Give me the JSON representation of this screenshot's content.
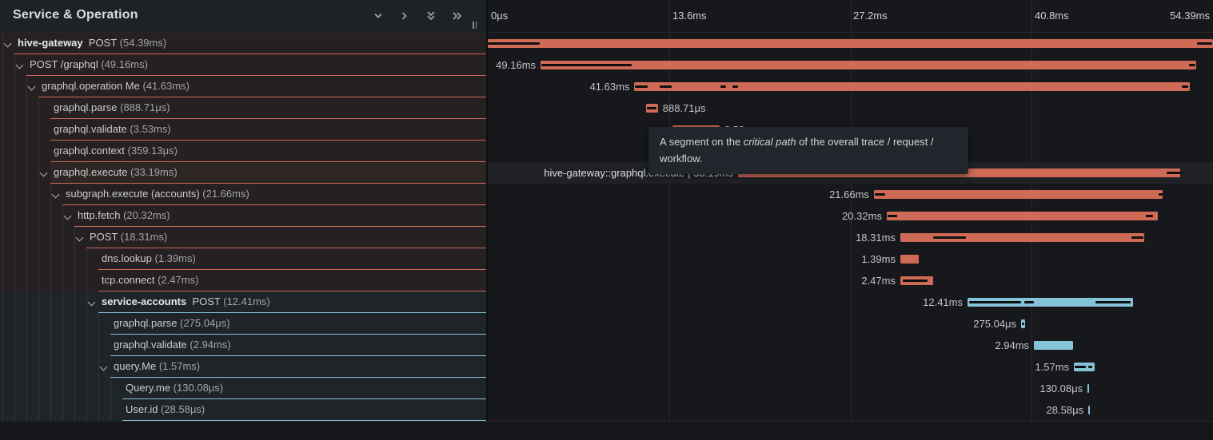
{
  "header": {
    "title": "Service & Operation",
    "icons": [
      "collapse-one-icon",
      "expand-one-icon",
      "collapse-all-icon",
      "expand-all-icon"
    ]
  },
  "timeline": {
    "max_ms": 54.39,
    "ticks": [
      "0μs",
      "13.6ms",
      "27.2ms",
      "40.8ms",
      "54.39ms"
    ]
  },
  "tooltip": {
    "pre": "A segment on the ",
    "italic": "critical path",
    "post": " of the overall trace / request / workflow."
  },
  "colors": {
    "orange": "#cf6a57",
    "blue": "#84c3d8",
    "critical_path": "#0e0f10",
    "row_bg_orange": "#252021",
    "row_bg_blue": "#1f2429",
    "row_hover_bg": "#2d2624",
    "timeline_hover_bg": "#1f2125"
  },
  "rows": [
    {
      "depth": 0,
      "expand": true,
      "bold": "hive-gateway",
      "name": "POST",
      "dur": "(54.39ms)",
      "svc": "orange",
      "start": 0,
      "ms": 54.39,
      "label": "",
      "side": "none",
      "crit": [
        [
          0,
          3.9
        ],
        [
          53.2,
          54.35
        ]
      ]
    },
    {
      "depth": 1,
      "expand": true,
      "bold": "",
      "name": "POST /graphql",
      "dur": "(49.16ms)",
      "svc": "orange",
      "start": 3.96,
      "ms": 49.16,
      "label": "49.16ms",
      "side": "left",
      "crit": [
        [
          4.0,
          10.8
        ],
        [
          52.6,
          53.05
        ]
      ]
    },
    {
      "depth": 2,
      "expand": true,
      "bold": "",
      "name": "graphql.operation Me",
      "dur": "(41.63ms)",
      "svc": "orange",
      "start": 11.0,
      "ms": 41.63,
      "label": "41.63ms",
      "side": "left",
      "crit": [
        [
          11.05,
          12.0
        ],
        [
          12.9,
          13.8
        ],
        [
          17.45,
          17.85
        ],
        [
          18.35,
          18.75
        ],
        [
          52.05,
          52.55
        ]
      ]
    },
    {
      "depth": 3,
      "expand": false,
      "bold": "",
      "name": "graphql.parse",
      "dur": "(888.71μs)",
      "svc": "orange",
      "start": 11.87,
      "ms": 0.889,
      "label": "888.71μs",
      "side": "right",
      "crit": [
        [
          11.95,
          12.65
        ]
      ]
    },
    {
      "depth": 3,
      "expand": false,
      "bold": "",
      "name": "graphql.validate",
      "dur": "(3.53ms)",
      "svc": "orange",
      "start": 13.85,
      "ms": 3.53,
      "label": "3.53ms",
      "side": "right",
      "crit": []
    },
    {
      "depth": 3,
      "expand": false,
      "bold": "",
      "name": "graphql.context",
      "dur": "(359.13μs)",
      "svc": "orange",
      "start": 17.5,
      "ms": 0.359,
      "label": "359.13μs",
      "side": "right",
      "crit": []
    },
    {
      "depth": 3,
      "expand": true,
      "hovered": true,
      "bold": "",
      "name": "graphql.execute",
      "dur": "(33.19ms)",
      "svc": "orange",
      "start": 18.77,
      "ms": 33.19,
      "label": "hive-gateway::graphql.execute | 33.19ms",
      "side": "left",
      "crit": [
        [
          18.85,
          28.9
        ],
        [
          50.9,
          52.0
        ]
      ]
    },
    {
      "depth": 4,
      "expand": true,
      "bold": "",
      "name": "subgraph.execute (accounts)",
      "dur": "(21.66ms)",
      "svc": "orange",
      "start": 28.96,
      "ms": 21.66,
      "label": "21.66ms",
      "side": "left",
      "crit": [
        [
          29.05,
          29.8
        ],
        [
          50.3,
          50.6
        ]
      ]
    },
    {
      "depth": 5,
      "expand": true,
      "bold": "",
      "name": "http.fetch",
      "dur": "(20.32ms)",
      "svc": "orange",
      "start": 29.92,
      "ms": 20.32,
      "label": "20.32ms",
      "side": "left",
      "crit": [
        [
          30.0,
          30.7
        ],
        [
          49.35,
          49.9
        ]
      ]
    },
    {
      "depth": 6,
      "expand": true,
      "bold": "",
      "name": "POST",
      "dur": "(18.31ms)",
      "svc": "orange",
      "start": 30.94,
      "ms": 18.31,
      "label": "18.31ms",
      "side": "left",
      "crit": [
        [
          33.4,
          35.85
        ],
        [
          48.3,
          49.15
        ]
      ]
    },
    {
      "depth": 7,
      "expand": false,
      "bold": "",
      "name": "dns.lookup",
      "dur": "(1.39ms)",
      "svc": "orange",
      "start": 30.94,
      "ms": 1.39,
      "label": "1.39ms",
      "side": "left",
      "crit": []
    },
    {
      "depth": 7,
      "expand": false,
      "bold": "",
      "name": "tcp.connect",
      "dur": "(2.47ms)",
      "svc": "orange",
      "start": 30.94,
      "ms": 2.47,
      "label": "2.47ms",
      "side": "left",
      "crit": [
        [
          31.1,
          33.0
        ]
      ]
    },
    {
      "depth": 7,
      "expand": true,
      "bold": "service-accounts",
      "name": "POST",
      "dur": "(12.41ms)",
      "svc": "blue",
      "start": 35.98,
      "ms": 12.41,
      "label": "12.41ms",
      "side": "left",
      "crit": [
        [
          36.1,
          40.0
        ],
        [
          40.25,
          40.95
        ],
        [
          45.6,
          48.2
        ]
      ]
    },
    {
      "depth": 8,
      "expand": false,
      "bold": "",
      "name": "graphql.parse",
      "dur": "(275.04μs)",
      "svc": "blue",
      "start": 40.0,
      "ms": 0.275,
      "label": "275.04μs",
      "side": "left",
      "crit": [
        [
          40.05,
          40.22
        ]
      ]
    },
    {
      "depth": 8,
      "expand": false,
      "bold": "",
      "name": "graphql.validate",
      "dur": "(2.94ms)",
      "svc": "blue",
      "start": 40.96,
      "ms": 2.94,
      "label": "2.94ms",
      "side": "left",
      "crit": []
    },
    {
      "depth": 8,
      "expand": true,
      "bold": "",
      "name": "query.Me",
      "dur": "(1.57ms)",
      "svc": "blue",
      "start": 43.96,
      "ms": 1.57,
      "label": "1.57ms",
      "side": "left",
      "crit": [
        [
          44.02,
          44.85
        ],
        [
          45.06,
          45.33
        ]
      ]
    },
    {
      "depth": 9,
      "expand": false,
      "bold": "",
      "name": "Query.me",
      "dur": "(130.08μs)",
      "svc": "blue",
      "start": 44.98,
      "ms": 0.13,
      "label": "130.08μs",
      "side": "left",
      "crit": []
    },
    {
      "depth": 9,
      "expand": false,
      "bold": "",
      "name": "User.id",
      "dur": "(28.58μs)",
      "svc": "blue",
      "start": 45.04,
      "ms": 0.029,
      "label": "28.58μs",
      "side": "left",
      "crit": []
    }
  ]
}
